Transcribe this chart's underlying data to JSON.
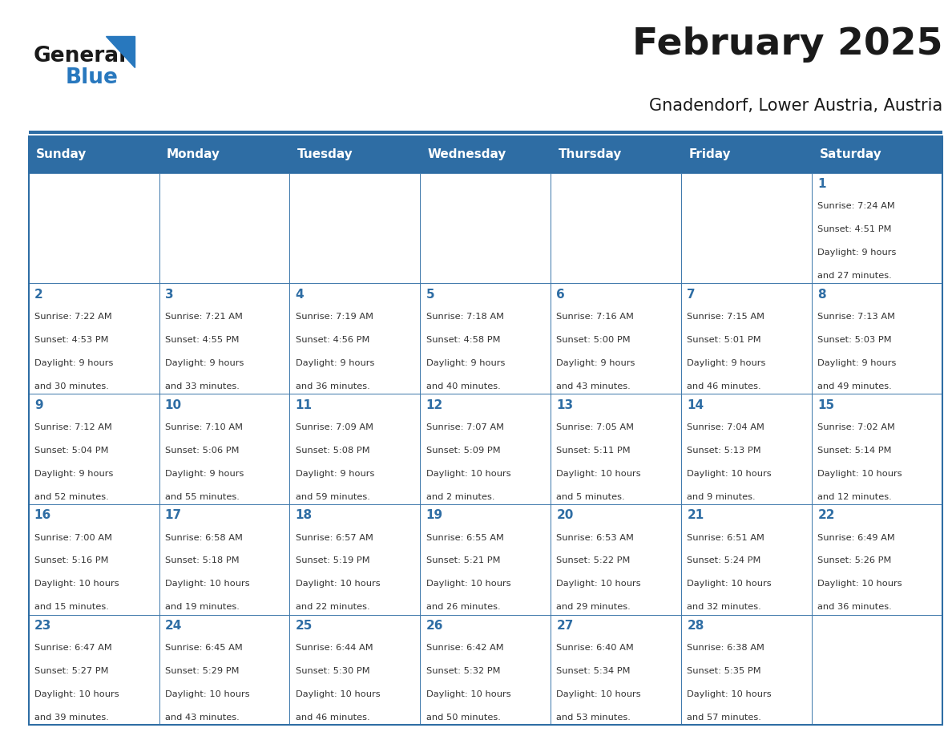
{
  "title": "February 2025",
  "subtitle": "Gnadendorf, Lower Austria, Austria",
  "header_bg": "#2E6DA4",
  "header_text": "#FFFFFF",
  "cell_bg_light": "#F2F2F2",
  "cell_bg_white": "#FFFFFF",
  "day_headers": [
    "Sunday",
    "Monday",
    "Tuesday",
    "Wednesday",
    "Thursday",
    "Friday",
    "Saturday"
  ],
  "title_color": "#1a1a1a",
  "subtitle_color": "#1a1a1a",
  "border_color": "#2E6DA4",
  "text_color": "#333333",
  "day_num_color": "#2E6DA4",
  "logo_general_color": "#1a1a1a",
  "logo_blue_color": "#2878BE",
  "weeks": [
    [
      null,
      null,
      null,
      null,
      null,
      null,
      1
    ],
    [
      2,
      3,
      4,
      5,
      6,
      7,
      8
    ],
    [
      9,
      10,
      11,
      12,
      13,
      14,
      15
    ],
    [
      16,
      17,
      18,
      19,
      20,
      21,
      22
    ],
    [
      23,
      24,
      25,
      26,
      27,
      28,
      null
    ]
  ],
  "day_data": {
    "1": {
      "sunrise": "7:24 AM",
      "sunset": "4:51 PM",
      "daylight_line1": "9 hours",
      "daylight_line2": "and 27 minutes."
    },
    "2": {
      "sunrise": "7:22 AM",
      "sunset": "4:53 PM",
      "daylight_line1": "9 hours",
      "daylight_line2": "and 30 minutes."
    },
    "3": {
      "sunrise": "7:21 AM",
      "sunset": "4:55 PM",
      "daylight_line1": "9 hours",
      "daylight_line2": "and 33 minutes."
    },
    "4": {
      "sunrise": "7:19 AM",
      "sunset": "4:56 PM",
      "daylight_line1": "9 hours",
      "daylight_line2": "and 36 minutes."
    },
    "5": {
      "sunrise": "7:18 AM",
      "sunset": "4:58 PM",
      "daylight_line1": "9 hours",
      "daylight_line2": "and 40 minutes."
    },
    "6": {
      "sunrise": "7:16 AM",
      "sunset": "5:00 PM",
      "daylight_line1": "9 hours",
      "daylight_line2": "and 43 minutes."
    },
    "7": {
      "sunrise": "7:15 AM",
      "sunset": "5:01 PM",
      "daylight_line1": "9 hours",
      "daylight_line2": "and 46 minutes."
    },
    "8": {
      "sunrise": "7:13 AM",
      "sunset": "5:03 PM",
      "daylight_line1": "9 hours",
      "daylight_line2": "and 49 minutes."
    },
    "9": {
      "sunrise": "7:12 AM",
      "sunset": "5:04 PM",
      "daylight_line1": "9 hours",
      "daylight_line2": "and 52 minutes."
    },
    "10": {
      "sunrise": "7:10 AM",
      "sunset": "5:06 PM",
      "daylight_line1": "9 hours",
      "daylight_line2": "and 55 minutes."
    },
    "11": {
      "sunrise": "7:09 AM",
      "sunset": "5:08 PM",
      "daylight_line1": "9 hours",
      "daylight_line2": "and 59 minutes."
    },
    "12": {
      "sunrise": "7:07 AM",
      "sunset": "5:09 PM",
      "daylight_line1": "10 hours",
      "daylight_line2": "and 2 minutes."
    },
    "13": {
      "sunrise": "7:05 AM",
      "sunset": "5:11 PM",
      "daylight_line1": "10 hours",
      "daylight_line2": "and 5 minutes."
    },
    "14": {
      "sunrise": "7:04 AM",
      "sunset": "5:13 PM",
      "daylight_line1": "10 hours",
      "daylight_line2": "and 9 minutes."
    },
    "15": {
      "sunrise": "7:02 AM",
      "sunset": "5:14 PM",
      "daylight_line1": "10 hours",
      "daylight_line2": "and 12 minutes."
    },
    "16": {
      "sunrise": "7:00 AM",
      "sunset": "5:16 PM",
      "daylight_line1": "10 hours",
      "daylight_line2": "and 15 minutes."
    },
    "17": {
      "sunrise": "6:58 AM",
      "sunset": "5:18 PM",
      "daylight_line1": "10 hours",
      "daylight_line2": "and 19 minutes."
    },
    "18": {
      "sunrise": "6:57 AM",
      "sunset": "5:19 PM",
      "daylight_line1": "10 hours",
      "daylight_line2": "and 22 minutes."
    },
    "19": {
      "sunrise": "6:55 AM",
      "sunset": "5:21 PM",
      "daylight_line1": "10 hours",
      "daylight_line2": "and 26 minutes."
    },
    "20": {
      "sunrise": "6:53 AM",
      "sunset": "5:22 PM",
      "daylight_line1": "10 hours",
      "daylight_line2": "and 29 minutes."
    },
    "21": {
      "sunrise": "6:51 AM",
      "sunset": "5:24 PM",
      "daylight_line1": "10 hours",
      "daylight_line2": "and 32 minutes."
    },
    "22": {
      "sunrise": "6:49 AM",
      "sunset": "5:26 PM",
      "daylight_line1": "10 hours",
      "daylight_line2": "and 36 minutes."
    },
    "23": {
      "sunrise": "6:47 AM",
      "sunset": "5:27 PM",
      "daylight_line1": "10 hours",
      "daylight_line2": "and 39 minutes."
    },
    "24": {
      "sunrise": "6:45 AM",
      "sunset": "5:29 PM",
      "daylight_line1": "10 hours",
      "daylight_line2": "and 43 minutes."
    },
    "25": {
      "sunrise": "6:44 AM",
      "sunset": "5:30 PM",
      "daylight_line1": "10 hours",
      "daylight_line2": "and 46 minutes."
    },
    "26": {
      "sunrise": "6:42 AM",
      "sunset": "5:32 PM",
      "daylight_line1": "10 hours",
      "daylight_line2": "and 50 minutes."
    },
    "27": {
      "sunrise": "6:40 AM",
      "sunset": "5:34 PM",
      "daylight_line1": "10 hours",
      "daylight_line2": "and 53 minutes."
    },
    "28": {
      "sunrise": "6:38 AM",
      "sunset": "5:35 PM",
      "daylight_line1": "10 hours",
      "daylight_line2": "and 57 minutes."
    }
  }
}
